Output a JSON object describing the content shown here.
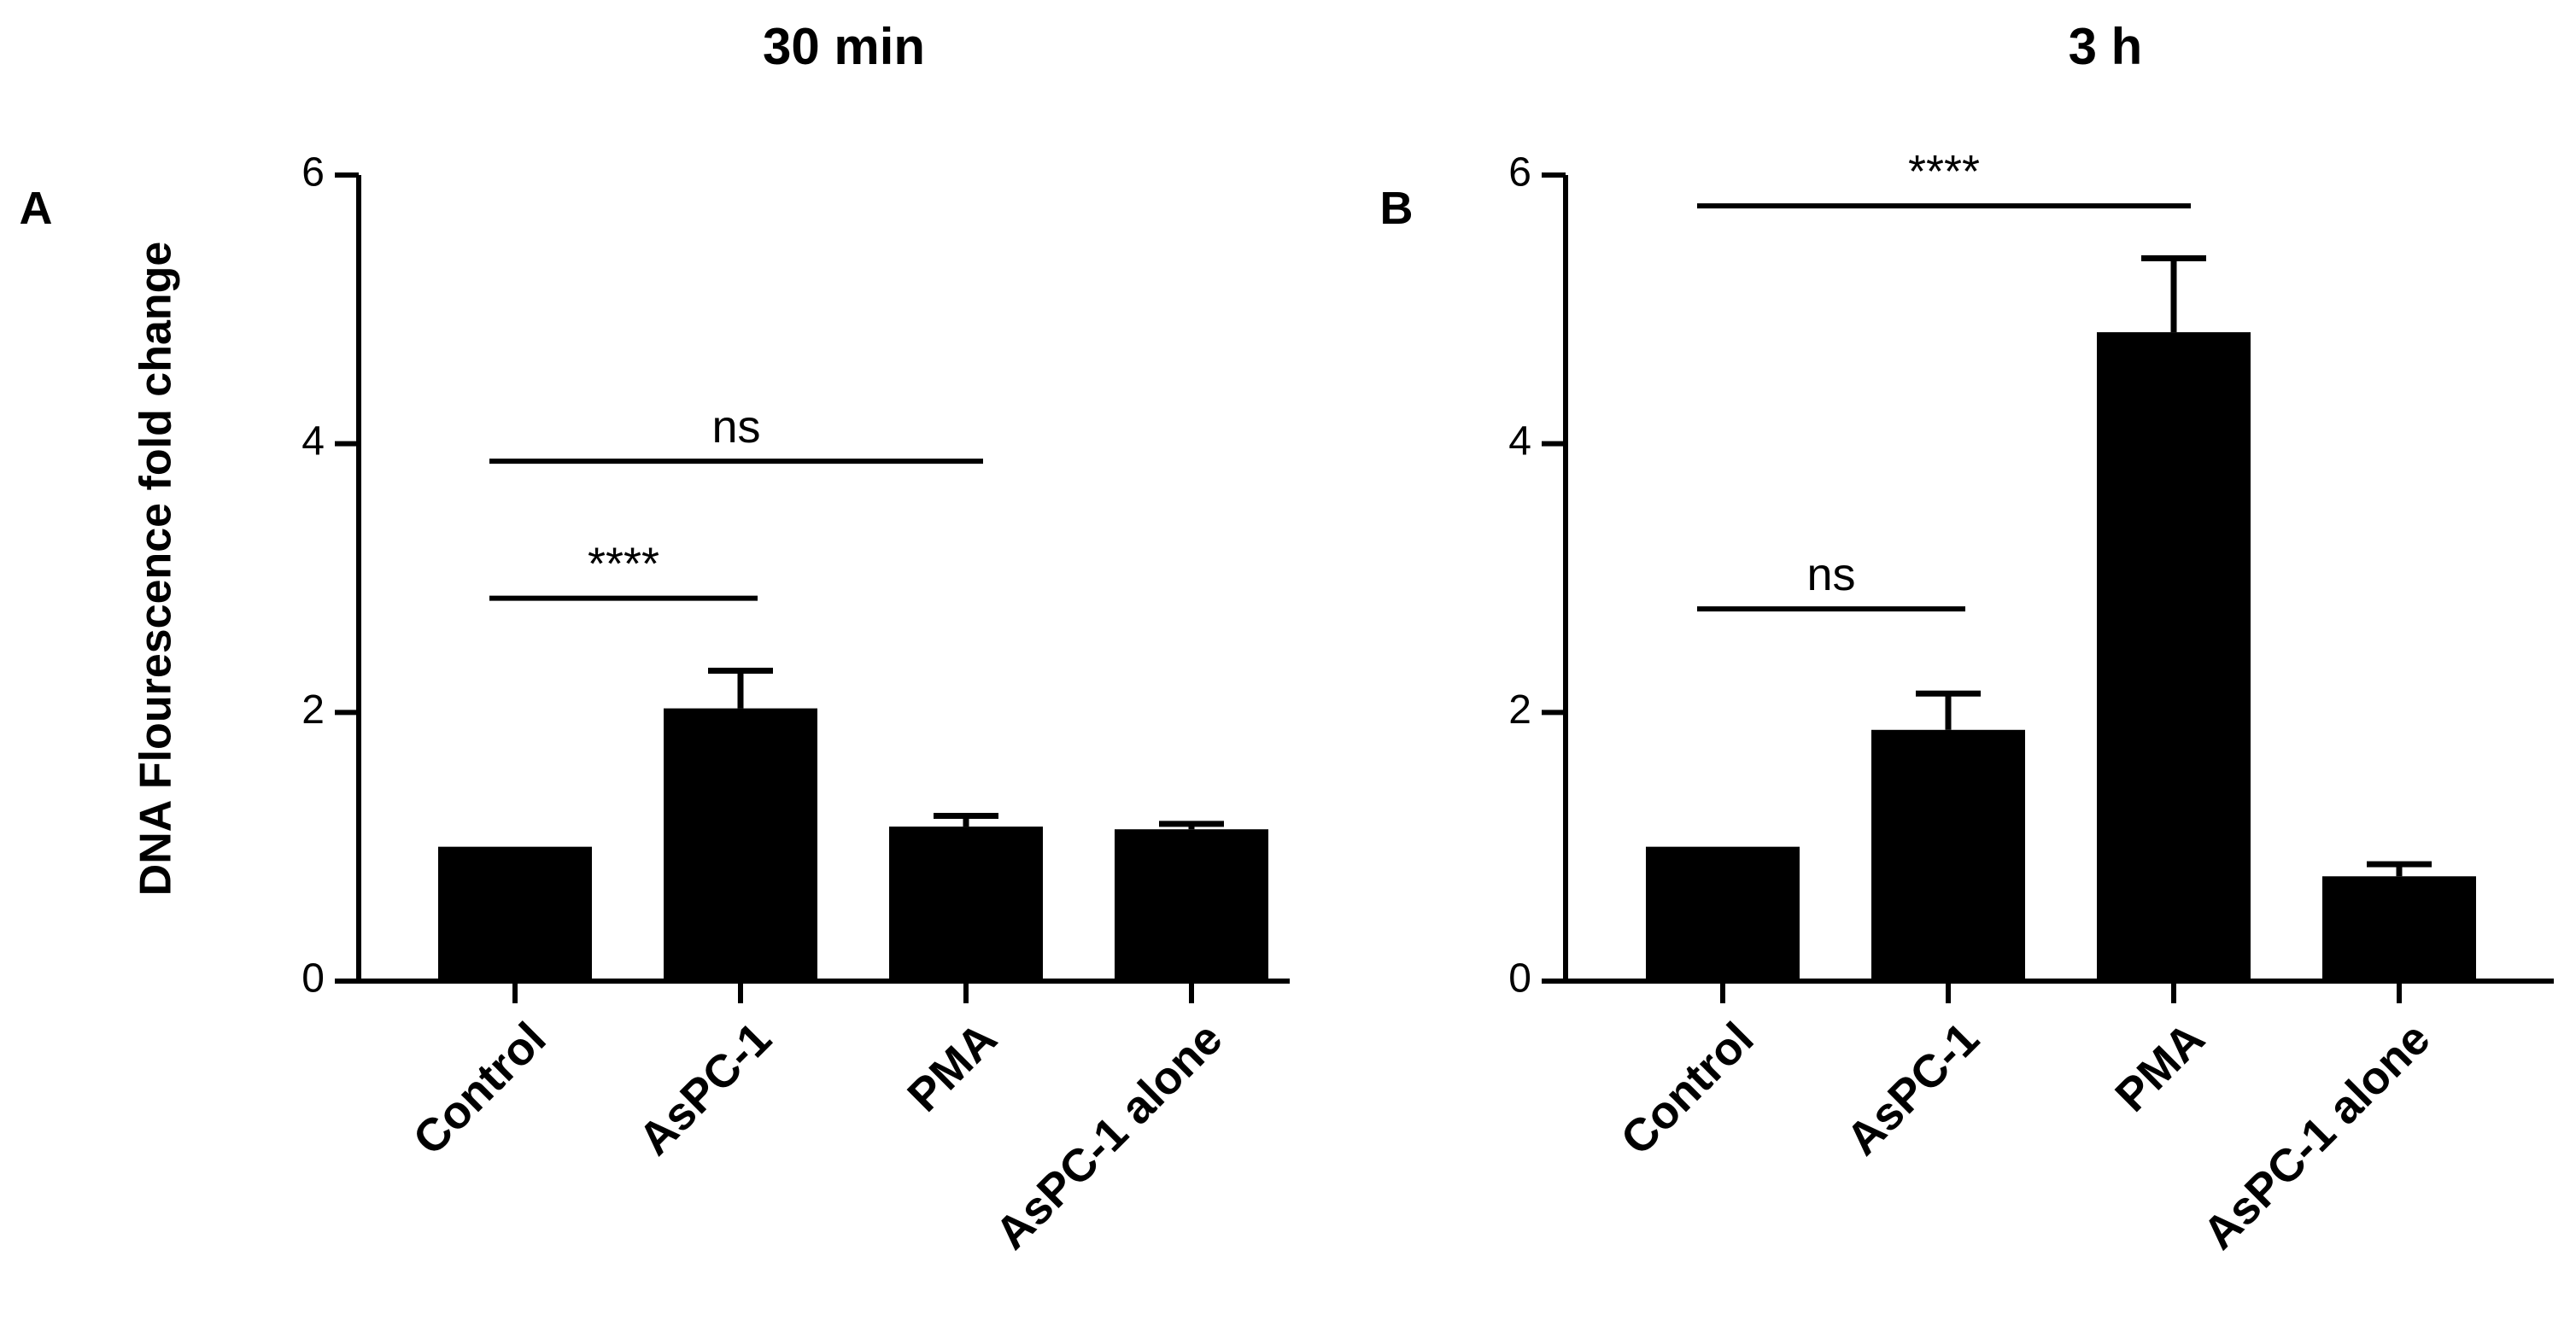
{
  "ylabel": "DNA Flourescence fold change",
  "chart_data": [
    {
      "type": "bar",
      "panel": "A",
      "title": "30 min",
      "categories": [
        "Control",
        "AsPC-1",
        "PMA",
        "AsPC-1 alone"
      ],
      "values": [
        1.0,
        2.03,
        1.15,
        1.13
      ],
      "errors": [
        0.0,
        0.28,
        0.08,
        0.04
      ],
      "ylim": [
        0,
        6
      ],
      "yticks": [
        "0",
        "2",
        "4",
        "6"
      ],
      "significance": [
        {
          "from": 0,
          "to": 1,
          "label": "****",
          "y": 2.85
        },
        {
          "from": 0,
          "to": 2,
          "label": "ns",
          "y": 3.87
        }
      ],
      "color": "#000000"
    },
    {
      "type": "bar",
      "panel": "B",
      "title": "3 h",
      "categories": [
        "Control",
        "AsPC-1",
        "PMA",
        "AsPC-1 alone"
      ],
      "values": [
        1.0,
        1.87,
        4.83,
        0.78
      ],
      "errors": [
        0.0,
        0.27,
        0.55,
        0.09
      ],
      "ylim": [
        0,
        6
      ],
      "yticks": [
        "0",
        "2",
        "4",
        "6"
      ],
      "significance": [
        {
          "from": 0,
          "to": 1,
          "label": "ns",
          "y": 2.77
        },
        {
          "from": 0,
          "to": 2,
          "label": "****",
          "y": 5.77
        }
      ],
      "color": "#000000"
    }
  ]
}
